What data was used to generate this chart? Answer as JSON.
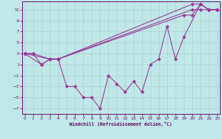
{
  "xlabel": "Windchill (Refroidissement éolien,°C)",
  "line1_x": [
    0,
    1,
    3,
    4,
    20,
    21,
    22,
    23
  ],
  "line1_y": [
    3,
    3,
    2,
    2,
    11,
    11,
    11,
    11
  ],
  "line2_x": [
    0,
    3,
    4,
    20,
    21,
    22,
    23
  ],
  "line2_y": [
    3,
    2,
    2,
    12,
    12,
    11,
    11
  ],
  "line3_x": [
    0,
    2,
    3,
    4,
    19,
    20,
    21,
    22,
    23
  ],
  "line3_y": [
    3,
    1,
    2,
    2,
    10,
    10,
    12,
    11,
    11
  ],
  "zigzag_x": [
    0,
    1,
    2,
    3,
    4,
    5,
    6,
    7,
    8,
    9,
    10,
    11,
    12,
    13,
    14,
    15,
    16,
    17,
    18,
    19,
    21,
    22,
    23
  ],
  "zigzag_y": [
    3,
    3,
    1,
    2,
    2,
    -3,
    -3,
    -5,
    -5,
    -7,
    -1,
    -2.5,
    -4,
    -2,
    -4,
    1,
    2,
    8,
    2,
    6,
    12,
    11,
    11
  ],
  "ylim": [
    -8,
    12.5
  ],
  "xlim": [
    -0.3,
    23.3
  ],
  "yticks": [
    -7,
    -5,
    -3,
    -1,
    1,
    3,
    5,
    7,
    9,
    11
  ],
  "xticks": [
    0,
    1,
    2,
    3,
    4,
    5,
    6,
    7,
    8,
    9,
    10,
    11,
    12,
    13,
    14,
    15,
    16,
    17,
    18,
    19,
    20,
    21,
    22,
    23
  ],
  "line_color": "#993399",
  "bg_color": "#c0e8e8",
  "grid_color": "#aacccc",
  "marker_size": 2.5
}
